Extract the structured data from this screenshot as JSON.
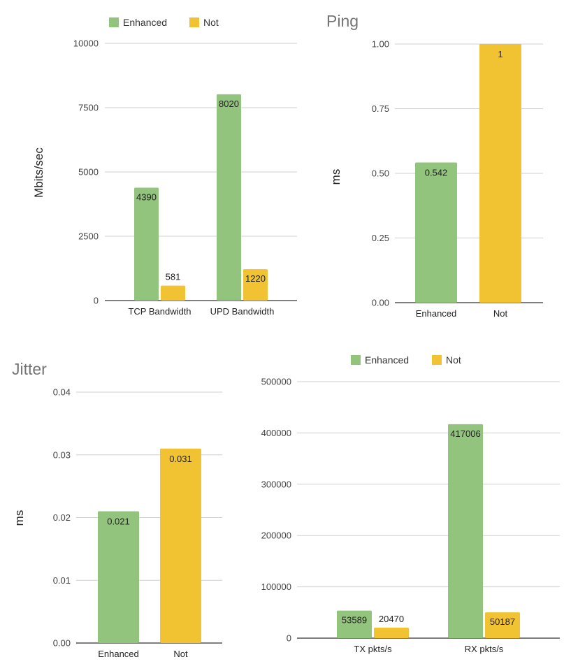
{
  "colors": {
    "enhanced": "#93c47d",
    "not": "#f1c232"
  },
  "chart_data": [
    {
      "id": "bandwidth",
      "type": "bar",
      "title": "",
      "xlabel": "",
      "ylabel": "Mbits/sec",
      "categories": [
        "TCP Bandwidth",
        "UPD Bandwidth"
      ],
      "series": [
        {
          "name": "Enhanced",
          "values": [
            4390,
            8020
          ],
          "labels": [
            "4390",
            "8020"
          ]
        },
        {
          "name": "Not",
          "values": [
            581,
            1220
          ],
          "labels": [
            "581",
            "1220"
          ]
        }
      ],
      "ylim": [
        0,
        10000
      ],
      "yticks": [
        0,
        2500,
        5000,
        7500,
        10000
      ],
      "ytick_labels": [
        "0",
        "2500",
        "5000",
        "7500",
        "10000"
      ],
      "legend_position": "top",
      "grid": true
    },
    {
      "id": "ping",
      "type": "bar",
      "title": "Ping",
      "xlabel": "",
      "ylabel": "ms",
      "categories": [
        "Enhanced",
        "Not"
      ],
      "values": [
        0.542,
        1
      ],
      "labels": [
        "0.542",
        "1"
      ],
      "ylim": [
        0,
        1
      ],
      "yticks": [
        0,
        0.25,
        0.5,
        0.75,
        1
      ],
      "ytick_labels": [
        "0.00",
        "0.25",
        "0.50",
        "0.75",
        "1.00"
      ],
      "grid": true
    },
    {
      "id": "jitter",
      "type": "bar",
      "title": "Jitter",
      "xlabel": "",
      "ylabel": "ms",
      "categories": [
        "Enhanced",
        "Not"
      ],
      "values": [
        0.021,
        0.031
      ],
      "labels": [
        "0.021",
        "0.031"
      ],
      "ylim": [
        0,
        0.04
      ],
      "yticks": [
        0,
        0.01,
        0.02,
        0.03,
        0.04
      ],
      "ytick_labels": [
        "0.00",
        "0.01",
        "0.02",
        "0.03",
        "0.04"
      ],
      "grid": true
    },
    {
      "id": "packets",
      "type": "bar",
      "title": "",
      "xlabel": "",
      "ylabel": "",
      "categories": [
        "TX pkts/s",
        "RX pkts/s"
      ],
      "series": [
        {
          "name": "Enhanced",
          "values": [
            53589,
            417006
          ],
          "labels": [
            "53589",
            "417006"
          ]
        },
        {
          "name": "Not",
          "values": [
            20470,
            50187
          ],
          "labels": [
            "20470",
            "50187"
          ]
        }
      ],
      "ylim": [
        0,
        500000
      ],
      "yticks": [
        0,
        100000,
        200000,
        300000,
        400000,
        500000
      ],
      "ytick_labels": [
        "0",
        "100000",
        "200000",
        "300000",
        "400000",
        "500000"
      ],
      "legend_position": "top",
      "grid": true
    }
  ]
}
